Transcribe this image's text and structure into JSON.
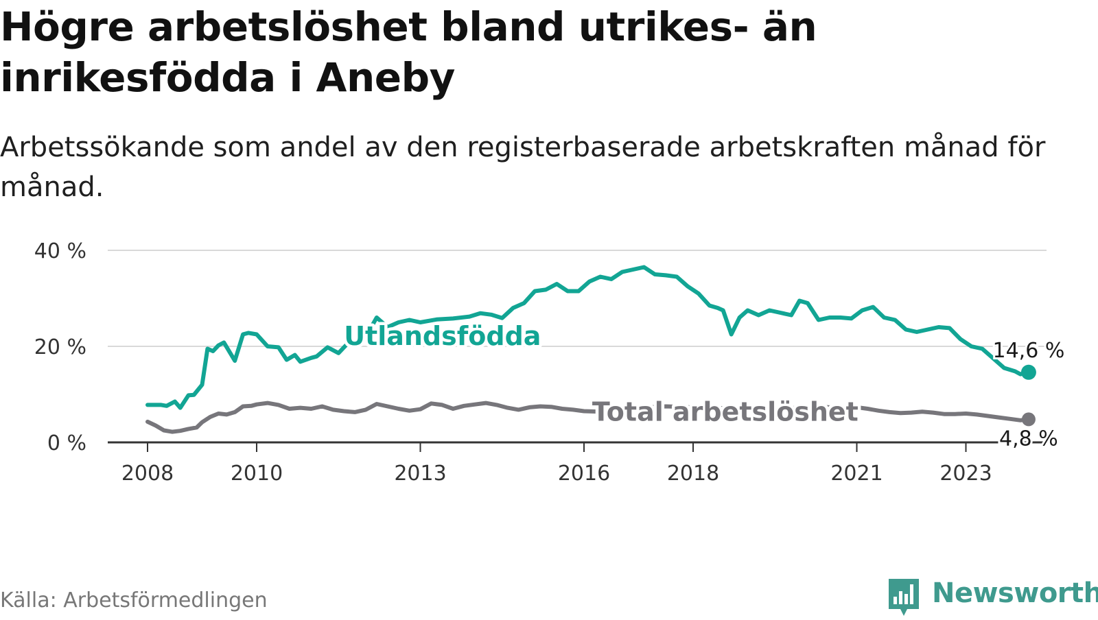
{
  "title": "Högre arbetslöshet bland utrikes- än inrikesfödda i Aneby",
  "subtitle": "Arbetssökande som andel av den registerbaserade arbetskraften månad för månad.",
  "source": "Källa: Arbetsförmedlingen",
  "brand": {
    "name": "Newsworthy",
    "icon": "newsworthy-logo-icon",
    "color": "#3f9a8e"
  },
  "chart_data": {
    "type": "line",
    "title": "Högre arbetslöshet bland utrikes- än inrikesfödda i Aneby",
    "xlabel": "",
    "ylabel": "",
    "ylim": [
      0,
      40
    ],
    "xlim": [
      2007.6,
      2024.75
    ],
    "grid": true,
    "y_ticks": [
      0,
      20,
      40
    ],
    "y_tick_labels": [
      "0 %",
      "20 %",
      "40 %"
    ],
    "x_ticks": [
      2008,
      2010,
      2013,
      2016,
      2018,
      2021,
      2023
    ],
    "x_tick_labels": [
      "2008",
      "2010",
      "2013",
      "2016",
      "2018",
      "2021",
      "2023"
    ],
    "series": [
      {
        "name": "Utlandsfödda",
        "color": "#12a594",
        "end_label": "14,6 %",
        "x": [
          2008.0,
          2008.25,
          2008.35,
          2008.5,
          2008.6,
          2008.75,
          2008.85,
          2009.0,
          2009.1,
          2009.2,
          2009.3,
          2009.4,
          2009.6,
          2009.75,
          2009.85,
          2010.0,
          2010.2,
          2010.4,
          2010.55,
          2010.7,
          2010.8,
          2011.0,
          2011.1,
          2011.3,
          2011.5,
          2011.7,
          2011.85,
          2012.0,
          2012.2,
          2012.4,
          2012.6,
          2012.8,
          2013.0,
          2013.3,
          2013.6,
          2013.9,
          2014.1,
          2014.3,
          2014.5,
          2014.7,
          2014.9,
          2015.1,
          2015.3,
          2015.5,
          2015.7,
          2015.9,
          2016.1,
          2016.3,
          2016.5,
          2016.7,
          2016.9,
          2017.1,
          2017.3,
          2017.5,
          2017.7,
          2017.9,
          2018.1,
          2018.3,
          2018.45,
          2018.55,
          2018.7,
          2018.85,
          2019.0,
          2019.2,
          2019.4,
          2019.6,
          2019.8,
          2019.95,
          2020.1,
          2020.3,
          2020.5,
          2020.7,
          2020.9,
          2021.1,
          2021.3,
          2021.5,
          2021.7,
          2021.9,
          2022.1,
          2022.3,
          2022.5,
          2022.7,
          2022.9,
          2023.1,
          2023.3,
          2023.5,
          2023.7,
          2023.9,
          2024.0,
          2024.15
        ],
        "values": [
          7.8,
          7.8,
          7.6,
          8.5,
          7.2,
          9.8,
          9.9,
          12.0,
          19.5,
          19.0,
          20.2,
          20.8,
          17.0,
          22.5,
          22.8,
          22.5,
          20.0,
          19.8,
          17.2,
          18.2,
          16.8,
          17.6,
          17.9,
          19.8,
          18.6,
          21.0,
          20.8,
          22.0,
          26.0,
          24.0,
          25.0,
          25.5,
          25.0,
          25.6,
          25.8,
          26.2,
          26.9,
          26.6,
          25.9,
          28.0,
          29.0,
          31.5,
          31.8,
          33.0,
          31.5,
          31.5,
          33.5,
          34.5,
          34.0,
          35.5,
          36.0,
          36.5,
          35.0,
          34.8,
          34.5,
          32.5,
          31.0,
          28.5,
          28.0,
          27.5,
          22.5,
          26.0,
          27.5,
          26.5,
          27.5,
          27.0,
          26.5,
          29.5,
          29.0,
          25.5,
          26.0,
          26.0,
          25.8,
          27.5,
          28.2,
          26.0,
          25.5,
          23.5,
          23.0,
          23.5,
          24.0,
          23.8,
          21.5,
          20.0,
          19.5,
          17.5,
          15.5,
          14.8,
          14.2,
          14.6
        ]
      },
      {
        "name": "Total arbetslöshet",
        "color": "#77767b",
        "end_label": "4,8 %",
        "x": [
          2008.0,
          2008.15,
          2008.3,
          2008.45,
          2008.6,
          2008.75,
          2008.9,
          2009.0,
          2009.15,
          2009.3,
          2009.45,
          2009.6,
          2009.75,
          2009.9,
          2010.0,
          2010.2,
          2010.4,
          2010.6,
          2010.8,
          2011.0,
          2011.2,
          2011.4,
          2011.6,
          2011.8,
          2012.0,
          2012.2,
          2012.4,
          2012.6,
          2012.8,
          2013.0,
          2013.2,
          2013.4,
          2013.6,
          2013.8,
          2014.0,
          2014.2,
          2014.4,
          2014.6,
          2014.8,
          2015.0,
          2015.2,
          2015.4,
          2015.6,
          2015.8,
          2016.0,
          2016.3,
          2016.6,
          2016.9,
          2017.2,
          2017.5,
          2017.8,
          2018.1,
          2018.4,
          2018.7,
          2019.0,
          2019.3,
          2019.6,
          2019.9,
          2020.2,
          2020.5,
          2020.8,
          2021.0,
          2021.2,
          2021.4,
          2021.6,
          2021.8,
          2022.0,
          2022.2,
          2022.4,
          2022.6,
          2022.8,
          2023.0,
          2023.2,
          2023.4,
          2023.6,
          2023.8,
          2024.0,
          2024.15
        ],
        "values": [
          4.3,
          3.5,
          2.5,
          2.2,
          2.4,
          2.8,
          3.1,
          4.2,
          5.3,
          6.0,
          5.8,
          6.3,
          7.5,
          7.6,
          7.9,
          8.2,
          7.8,
          7.0,
          7.2,
          7.0,
          7.5,
          6.8,
          6.5,
          6.3,
          6.8,
          8.0,
          7.5,
          7.0,
          6.6,
          6.9,
          8.1,
          7.8,
          7.0,
          7.6,
          7.9,
          8.2,
          7.8,
          7.2,
          6.8,
          7.3,
          7.5,
          7.4,
          7.0,
          6.8,
          6.5,
          6.4,
          7.2,
          7.0,
          7.3,
          7.5,
          7.4,
          7.2,
          7.0,
          7.3,
          7.5,
          7.4,
          7.0,
          7.2,
          7.5,
          7.3,
          7.4,
          7.3,
          7.0,
          6.6,
          6.3,
          6.1,
          6.2,
          6.4,
          6.2,
          5.9,
          5.9,
          6.0,
          5.8,
          5.5,
          5.2,
          4.9,
          4.6,
          4.8
        ]
      }
    ]
  }
}
